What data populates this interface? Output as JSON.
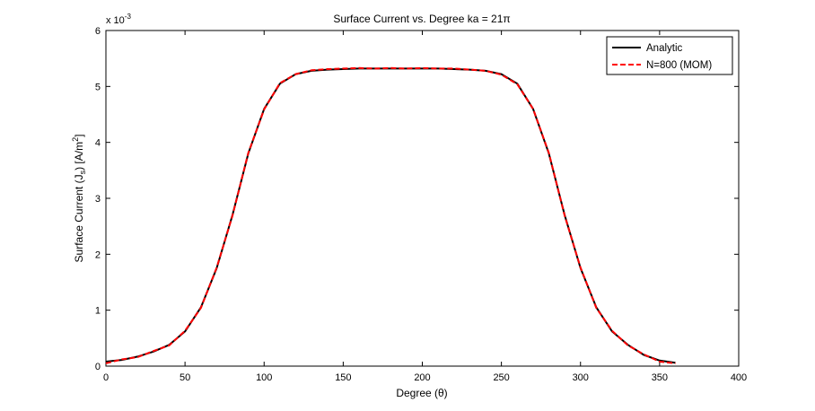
{
  "chart_data": {
    "type": "line",
    "title": "Surface Current vs. Degree ka = 21π",
    "xlabel": "Degree (θ)",
    "ylabel": "Surface Current (J",
    "ylabel_sub": "s",
    "ylabel_units": ") [A/m",
    "ylabel_sup": "2",
    "ylabel_end": "]",
    "y_exponent_label": "x 10",
    "y_exponent_power": "-3",
    "xlim": [
      0,
      400
    ],
    "ylim": [
      0,
      6
    ],
    "x_ticks": [
      0,
      50,
      100,
      150,
      200,
      250,
      300,
      350,
      400
    ],
    "y_ticks": [
      0,
      1,
      2,
      3,
      4,
      5,
      6
    ],
    "grid": false,
    "legend_position": "top-right",
    "series": [
      {
        "name": "Analytic",
        "color": "#000000",
        "style": "solid",
        "x": [
          0,
          10,
          20,
          30,
          40,
          50,
          60,
          70,
          80,
          90,
          100,
          110,
          120,
          130,
          140,
          150,
          160,
          170,
          180,
          190,
          200,
          210,
          220,
          230,
          240,
          250,
          260,
          270,
          280,
          290,
          300,
          310,
          320,
          330,
          340,
          350,
          360
        ],
        "values": [
          0.08,
          0.11,
          0.17,
          0.26,
          0.38,
          0.62,
          1.05,
          1.75,
          2.7,
          3.8,
          4.6,
          5.05,
          5.22,
          5.28,
          5.3,
          5.31,
          5.32,
          5.32,
          5.32,
          5.32,
          5.32,
          5.32,
          5.31,
          5.3,
          5.28,
          5.22,
          5.05,
          4.6,
          3.8,
          2.7,
          1.75,
          1.05,
          0.62,
          0.38,
          0.2,
          0.1,
          0.06
        ]
      },
      {
        "name": "N=800 (MOM)",
        "color": "#ff0000",
        "style": "dashed",
        "x": [
          0,
          10,
          20,
          30,
          40,
          50,
          60,
          70,
          80,
          90,
          100,
          110,
          120,
          130,
          140,
          150,
          160,
          170,
          180,
          190,
          200,
          210,
          220,
          230,
          240,
          250,
          260,
          270,
          280,
          290,
          300,
          310,
          320,
          330,
          340,
          350,
          360
        ],
        "values": [
          0.05,
          0.12,
          0.16,
          0.27,
          0.37,
          0.63,
          1.04,
          1.76,
          2.69,
          3.81,
          4.59,
          5.06,
          5.22,
          5.29,
          5.31,
          5.32,
          5.33,
          5.32,
          5.33,
          5.32,
          5.33,
          5.32,
          5.32,
          5.3,
          5.28,
          5.21,
          5.04,
          4.6,
          3.81,
          2.69,
          1.76,
          1.04,
          0.63,
          0.37,
          0.21,
          0.08,
          0.05
        ]
      }
    ]
  }
}
